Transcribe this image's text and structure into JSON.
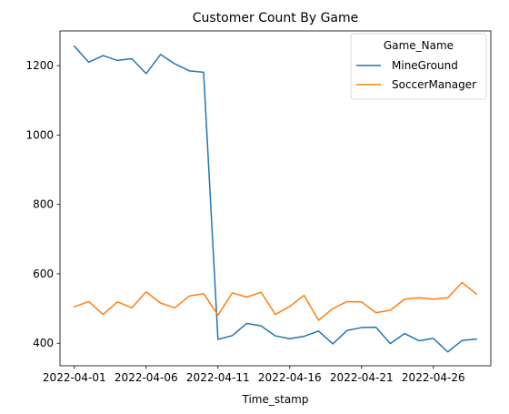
{
  "chart_data": {
    "type": "line",
    "title": "Customer Count By Game",
    "xlabel": "Time_stamp",
    "ylabel": "",
    "x": [
      "2022-04-01",
      "2022-04-02",
      "2022-04-03",
      "2022-04-04",
      "2022-04-05",
      "2022-04-06",
      "2022-04-07",
      "2022-04-08",
      "2022-04-09",
      "2022-04-10",
      "2022-04-11",
      "2022-04-12",
      "2022-04-13",
      "2022-04-14",
      "2022-04-15",
      "2022-04-16",
      "2022-04-17",
      "2022-04-18",
      "2022-04-19",
      "2022-04-20",
      "2022-04-21",
      "2022-04-22",
      "2022-04-23",
      "2022-04-24",
      "2022-04-25",
      "2022-04-26",
      "2022-04-27",
      "2022-04-28",
      "2022-04-29"
    ],
    "xlim": [
      "2022-03-31",
      "2022-04-30"
    ],
    "ylim": [
      335,
      1300
    ],
    "x_ticks": [
      "2022-04-01",
      "2022-04-06",
      "2022-04-11",
      "2022-04-16",
      "2022-04-21",
      "2022-04-26"
    ],
    "y_ticks": [
      400,
      600,
      800,
      1000,
      1200
    ],
    "grid": false,
    "legend": {
      "title": "Game_Name",
      "placement": "upper right"
    },
    "series": [
      {
        "name": "MineGround",
        "color": "#1f77b4",
        "values": [
          1256,
          1210,
          1229,
          1215,
          1220,
          1177,
          1232,
          1205,
          1185,
          1181,
          411,
          422,
          457,
          450,
          421,
          413,
          420,
          435,
          398,
          437,
          445,
          446,
          399,
          428,
          407,
          414,
          375,
          408,
          412
        ]
      },
      {
        "name": "SoccerManager",
        "color": "#ff7f0e",
        "values": [
          505,
          520,
          483,
          519,
          502,
          548,
          516,
          502,
          536,
          543,
          481,
          545,
          533,
          547,
          483,
          506,
          538,
          466,
          500,
          520,
          519,
          488,
          495,
          527,
          531,
          527,
          531,
          575,
          542
        ]
      }
    ]
  }
}
